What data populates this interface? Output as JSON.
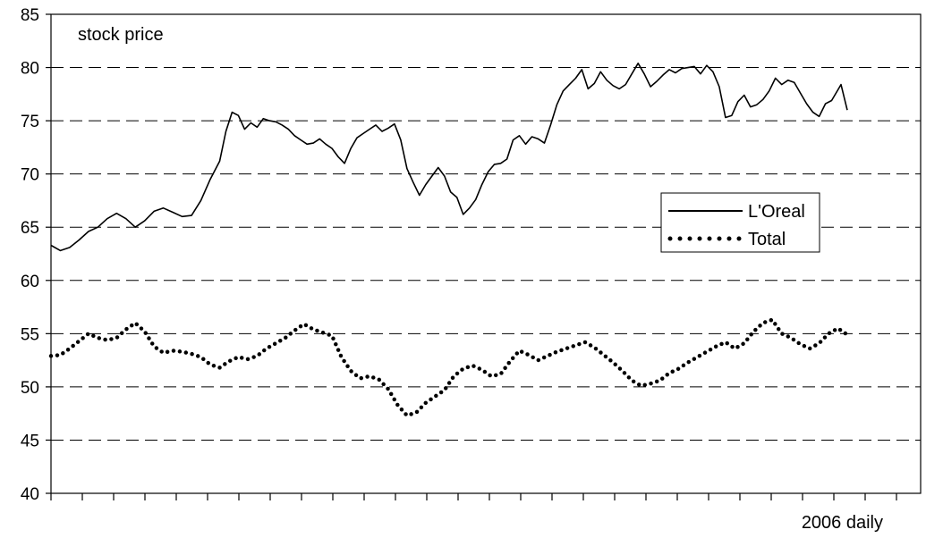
{
  "chart_data": {
    "type": "line",
    "annotation": "stock price",
    "xlabel": "2006 daily",
    "ylim": [
      40,
      85
    ],
    "yticks": [
      40,
      45,
      50,
      55,
      60,
      65,
      70,
      75,
      80,
      85
    ],
    "y_tick_labels": [
      "40",
      "45",
      "50",
      "55",
      "60",
      "65",
      "70",
      "75",
      "80",
      "85"
    ],
    "grid": "horizontal dashed at 45-80",
    "legend_position": "center-right",
    "x_day_count": 255,
    "series": [
      {
        "name": "L'Oreal",
        "style": "solid",
        "color": "#000000",
        "points": [
          [
            0,
            63.3
          ],
          [
            3,
            62.8
          ],
          [
            6,
            63.1
          ],
          [
            9,
            63.8
          ],
          [
            12,
            64.6
          ],
          [
            15,
            65.0
          ],
          [
            18,
            65.8
          ],
          [
            21,
            66.3
          ],
          [
            24,
            65.8
          ],
          [
            27,
            65.0
          ],
          [
            30,
            65.6
          ],
          [
            33,
            66.5
          ],
          [
            36,
            66.8
          ],
          [
            39,
            66.4
          ],
          [
            42,
            66.0
          ],
          [
            45,
            66.1
          ],
          [
            48,
            67.5
          ],
          [
            51,
            69.5
          ],
          [
            54,
            71.2
          ],
          [
            56,
            74.0
          ],
          [
            58,
            75.8
          ],
          [
            60,
            75.5
          ],
          [
            62,
            74.2
          ],
          [
            64,
            74.8
          ],
          [
            66,
            74.4
          ],
          [
            68,
            75.2
          ],
          [
            70,
            75.0
          ],
          [
            72,
            74.9
          ],
          [
            74,
            74.6
          ],
          [
            76,
            74.2
          ],
          [
            78,
            73.6
          ],
          [
            80,
            73.2
          ],
          [
            82,
            72.8
          ],
          [
            84,
            72.9
          ],
          [
            86,
            73.3
          ],
          [
            88,
            72.8
          ],
          [
            90,
            72.4
          ],
          [
            92,
            71.6
          ],
          [
            94,
            71.0
          ],
          [
            96,
            72.4
          ],
          [
            98,
            73.4
          ],
          [
            100,
            73.8
          ],
          [
            102,
            74.2
          ],
          [
            104,
            74.6
          ],
          [
            106,
            74.0
          ],
          [
            108,
            74.3
          ],
          [
            110,
            74.7
          ],
          [
            112,
            73.2
          ],
          [
            114,
            70.5
          ],
          [
            116,
            69.2
          ],
          [
            118,
            68.0
          ],
          [
            120,
            69.0
          ],
          [
            122,
            69.8
          ],
          [
            124,
            70.6
          ],
          [
            126,
            69.8
          ],
          [
            128,
            68.3
          ],
          [
            130,
            67.8
          ],
          [
            132,
            66.2
          ],
          [
            134,
            66.8
          ],
          [
            136,
            67.6
          ],
          [
            138,
            69.0
          ],
          [
            140,
            70.2
          ],
          [
            142,
            70.9
          ],
          [
            144,
            71.0
          ],
          [
            146,
            71.4
          ],
          [
            148,
            73.2
          ],
          [
            150,
            73.6
          ],
          [
            152,
            72.8
          ],
          [
            154,
            73.5
          ],
          [
            156,
            73.3
          ],
          [
            158,
            72.9
          ],
          [
            160,
            74.6
          ],
          [
            162,
            76.5
          ],
          [
            164,
            77.8
          ],
          [
            166,
            78.4
          ],
          [
            168,
            79.0
          ],
          [
            170,
            79.8
          ],
          [
            172,
            78.0
          ],
          [
            174,
            78.5
          ],
          [
            176,
            79.6
          ],
          [
            178,
            78.8
          ],
          [
            180,
            78.3
          ],
          [
            182,
            78.0
          ],
          [
            184,
            78.4
          ],
          [
            186,
            79.4
          ],
          [
            188,
            80.4
          ],
          [
            190,
            79.4
          ],
          [
            192,
            78.2
          ],
          [
            194,
            78.7
          ],
          [
            196,
            79.3
          ],
          [
            198,
            79.8
          ],
          [
            200,
            79.5
          ],
          [
            202,
            79.9
          ],
          [
            204,
            80.0
          ],
          [
            206,
            80.1
          ],
          [
            208,
            79.4
          ],
          [
            210,
            80.2
          ],
          [
            212,
            79.6
          ],
          [
            214,
            78.2
          ],
          [
            216,
            75.3
          ],
          [
            218,
            75.5
          ],
          [
            220,
            76.8
          ],
          [
            222,
            77.4
          ],
          [
            224,
            76.3
          ],
          [
            226,
            76.5
          ],
          [
            228,
            77.0
          ],
          [
            230,
            77.8
          ],
          [
            232,
            79.0
          ],
          [
            234,
            78.4
          ],
          [
            236,
            78.8
          ],
          [
            238,
            78.6
          ],
          [
            240,
            77.6
          ],
          [
            242,
            76.6
          ],
          [
            244,
            75.8
          ],
          [
            246,
            75.4
          ],
          [
            248,
            76.6
          ],
          [
            250,
            76.9
          ],
          [
            252,
            77.9
          ],
          [
            253,
            78.4
          ],
          [
            255,
            76.0
          ]
        ]
      },
      {
        "name": "Total",
        "style": "dotted",
        "color": "#000000",
        "points": [
          [
            0,
            52.9
          ],
          [
            3,
            53.0
          ],
          [
            6,
            53.6
          ],
          [
            9,
            54.3
          ],
          [
            12,
            55.0
          ],
          [
            15,
            54.6
          ],
          [
            18,
            54.4
          ],
          [
            21,
            54.6
          ],
          [
            24,
            55.4
          ],
          [
            27,
            56.0
          ],
          [
            30,
            55.2
          ],
          [
            33,
            53.8
          ],
          [
            36,
            53.2
          ],
          [
            39,
            53.4
          ],
          [
            42,
            53.3
          ],
          [
            45,
            53.1
          ],
          [
            48,
            52.8
          ],
          [
            51,
            52.1
          ],
          [
            54,
            51.8
          ],
          [
            57,
            52.4
          ],
          [
            60,
            52.8
          ],
          [
            63,
            52.6
          ],
          [
            66,
            52.9
          ],
          [
            69,
            53.6
          ],
          [
            72,
            54.1
          ],
          [
            75,
            54.6
          ],
          [
            78,
            55.3
          ],
          [
            81,
            55.9
          ],
          [
            84,
            55.4
          ],
          [
            87,
            55.1
          ],
          [
            90,
            54.8
          ],
          [
            93,
            52.8
          ],
          [
            96,
            51.5
          ],
          [
            99,
            50.8
          ],
          [
            102,
            51.0
          ],
          [
            105,
            50.7
          ],
          [
            108,
            49.8
          ],
          [
            111,
            48.3
          ],
          [
            114,
            47.3
          ],
          [
            117,
            47.6
          ],
          [
            120,
            48.5
          ],
          [
            123,
            49.1
          ],
          [
            126,
            49.7
          ],
          [
            129,
            51.0
          ],
          [
            132,
            51.7
          ],
          [
            135,
            52.0
          ],
          [
            138,
            51.6
          ],
          [
            141,
            51.0
          ],
          [
            144,
            51.2
          ],
          [
            147,
            52.4
          ],
          [
            150,
            53.4
          ],
          [
            153,
            53.0
          ],
          [
            156,
            52.5
          ],
          [
            159,
            52.9
          ],
          [
            162,
            53.3
          ],
          [
            165,
            53.6
          ],
          [
            168,
            53.9
          ],
          [
            171,
            54.2
          ],
          [
            174,
            53.7
          ],
          [
            177,
            53.0
          ],
          [
            180,
            52.3
          ],
          [
            183,
            51.5
          ],
          [
            186,
            50.6
          ],
          [
            189,
            50.1
          ],
          [
            192,
            50.3
          ],
          [
            195,
            50.6
          ],
          [
            198,
            51.3
          ],
          [
            201,
            51.7
          ],
          [
            204,
            52.3
          ],
          [
            207,
            52.8
          ],
          [
            210,
            53.3
          ],
          [
            213,
            53.8
          ],
          [
            216,
            54.2
          ],
          [
            219,
            53.6
          ],
          [
            222,
            54.1
          ],
          [
            225,
            55.2
          ],
          [
            228,
            56.0
          ],
          [
            231,
            56.3
          ],
          [
            234,
            55.0
          ],
          [
            237,
            54.6
          ],
          [
            240,
            54.0
          ],
          [
            243,
            53.6
          ],
          [
            246,
            54.1
          ],
          [
            249,
            55.0
          ],
          [
            252,
            55.5
          ],
          [
            255,
            54.9
          ]
        ]
      }
    ]
  }
}
